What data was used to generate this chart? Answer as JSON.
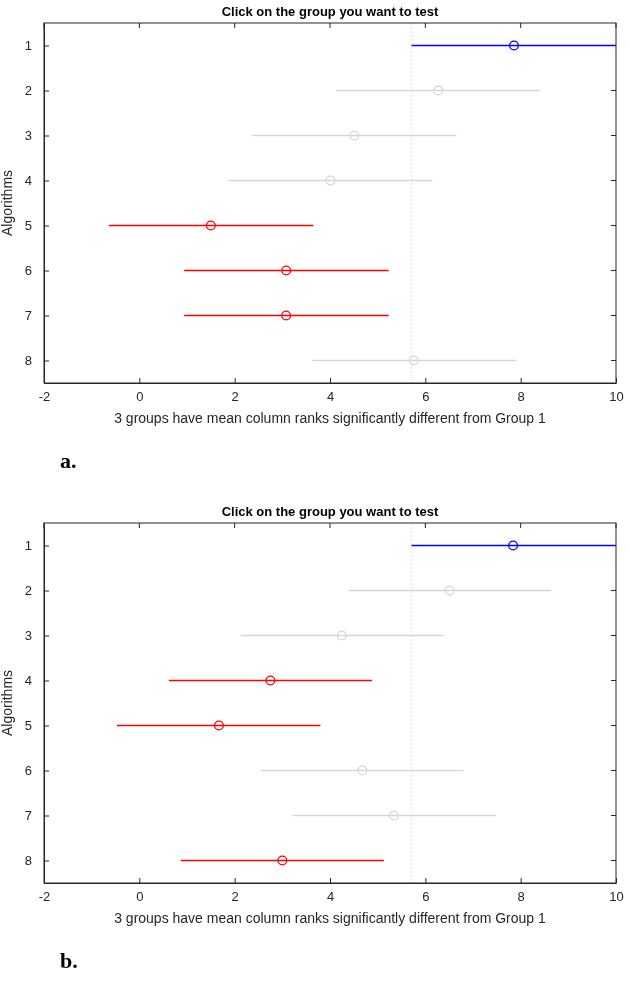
{
  "chart_data": [
    {
      "type": "scatter",
      "orientation": "horizontal",
      "title": "Click on the group you want to test",
      "xlabel": "3 groups have mean column ranks significantly different from Group 1",
      "ylabel": "Algorithms",
      "categories": [
        "1",
        "2",
        "3",
        "4",
        "5",
        "6",
        "7",
        "8"
      ],
      "xlim": [
        -2,
        10
      ],
      "xticks": [
        -2,
        0,
        2,
        4,
        6,
        8,
        10
      ],
      "marker": "circle",
      "ref_lines": [
        {
          "axis": "x",
          "value": 5.71,
          "color": "#d9d9d9",
          "line_style": "dotted"
        }
      ],
      "annotations": [
        "a."
      ],
      "series": [
        {
          "color": "#0000ff",
          "values": [
            7.86,
            null,
            null,
            null,
            null,
            null,
            null,
            null
          ],
          "errors": [
            [
              5.71,
              10
            ],
            null,
            null,
            null,
            null,
            null,
            null,
            null
          ]
        },
        {
          "color": "#d6d6d6",
          "values": [
            null,
            6.27,
            4.51,
            4.01,
            null,
            null,
            null,
            5.76
          ],
          "errors": [
            null,
            [
              4.13,
              8.41
            ],
            [
              2.37,
              6.65
            ],
            [
              1.87,
              6.15
            ],
            null,
            null,
            null,
            [
              3.63,
              7.91
            ]
          ]
        },
        {
          "color": "#ff0000",
          "values": [
            null,
            null,
            null,
            null,
            1.5,
            3.08,
            3.08,
            null
          ],
          "errors": [
            null,
            null,
            null,
            null,
            [
              -0.64,
              3.65
            ],
            [
              0.94,
              5.23
            ],
            [
              0.94,
              5.23
            ],
            null
          ]
        }
      ]
    },
    {
      "type": "scatter",
      "orientation": "horizontal",
      "title": "Click on the group you want to test",
      "xlabel": "3 groups have mean column ranks significantly different from Group 1",
      "ylabel": "Algorithms",
      "categories": [
        "1",
        "2",
        "3",
        "4",
        "5",
        "6",
        "7",
        "8"
      ],
      "xlim": [
        -2,
        10
      ],
      "xticks": [
        -2,
        0,
        2,
        4,
        6,
        8,
        10
      ],
      "marker": "circle",
      "ref_lines": [
        {
          "axis": "x",
          "value": 5.71,
          "color": "#d9d9d9",
          "line_style": "dotted"
        }
      ],
      "annotations": [
        "b."
      ],
      "series": [
        {
          "color": "#0000ff",
          "values": [
            7.84,
            null,
            null,
            null,
            null,
            null,
            null,
            null
          ],
          "errors": [
            [
              5.71,
              10
            ],
            null,
            null,
            null,
            null,
            null,
            null,
            null
          ]
        },
        {
          "color": "#d6d6d6",
          "values": [
            null,
            6.51,
            4.25,
            null,
            null,
            4.68,
            5.34,
            null
          ],
          "errors": [
            null,
            [
              4.39,
              8.64
            ],
            [
              2.13,
              6.38
            ],
            null,
            null,
            [
              2.54,
              6.8
            ],
            [
              3.21,
              7.48
            ],
            null
          ]
        },
        {
          "color": "#ff0000",
          "values": [
            null,
            null,
            null,
            2.75,
            1.67,
            null,
            null,
            3.0
          ],
          "errors": [
            null,
            null,
            null,
            [
              0.62,
              4.88
            ],
            [
              -0.47,
              3.8
            ],
            null,
            null,
            [
              0.87,
              5.13
            ]
          ]
        }
      ]
    }
  ]
}
